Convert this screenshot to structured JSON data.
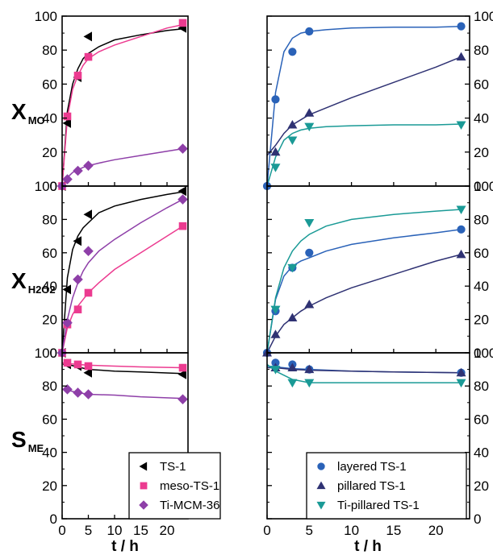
{
  "chart_data": {
    "type": "scatter",
    "x_label": "t / h",
    "x_range": [
      0,
      24
    ],
    "x_ticks": [
      0,
      5,
      10,
      15,
      20
    ],
    "y_range": [
      0,
      100
    ],
    "y_ticks": [
      0,
      20,
      40,
      60,
      80,
      100
    ],
    "rows": [
      {
        "id": "xmo",
        "label_main": "X",
        "label_sub": "MO"
      },
      {
        "id": "xh2o2",
        "label_main": "X",
        "label_sub": "H2O2"
      },
      {
        "id": "sme",
        "label_main": "S",
        "label_sub": "ME"
      }
    ],
    "legend_placement": "bottom-right",
    "series": [
      {
        "name": "TS-1",
        "column": "left",
        "marker": "triangle-left",
        "color": "#000000",
        "data": {
          "xmo": [
            [
              0,
              0
            ],
            [
              1,
              37
            ],
            [
              3,
              64
            ],
            [
              5,
              88
            ],
            [
              23,
              93
            ]
          ],
          "xh2o2": [
            [
              0,
              0
            ],
            [
              1,
              38
            ],
            [
              3,
              67
            ],
            [
              5,
              83
            ],
            [
              23,
              97
            ]
          ],
          "sme": [
            [
              1,
              93
            ],
            [
              3,
              92
            ],
            [
              5,
              88
            ],
            [
              23,
              87
            ]
          ]
        },
        "fit": {
          "xmo": [
            [
              0,
              0
            ],
            [
              1,
              44
            ],
            [
              2,
              60
            ],
            [
              3,
              69
            ],
            [
              4,
              75
            ],
            [
              5,
              78
            ],
            [
              7,
              82
            ],
            [
              10,
              86
            ],
            [
              15,
              89
            ],
            [
              20,
              91.5
            ],
            [
              23,
              92.5
            ]
          ],
          "xh2o2": [
            [
              0,
              0
            ],
            [
              1,
              45
            ],
            [
              2,
              62
            ],
            [
              3,
              70
            ],
            [
              4,
              75
            ],
            [
              5,
              78
            ],
            [
              7,
              84
            ],
            [
              10,
              88
            ],
            [
              15,
              92
            ],
            [
              20,
              95
            ],
            [
              23,
              96.5
            ]
          ],
          "sme": [
            [
              0,
              94
            ],
            [
              1,
              93
            ],
            [
              3,
              91.5
            ],
            [
              5,
              90
            ],
            [
              10,
              89
            ],
            [
              15,
              88.5
            ],
            [
              23,
              87.5
            ]
          ]
        }
      },
      {
        "name": "meso-TS-1",
        "column": "left",
        "marker": "square",
        "color": "#ec3b90",
        "data": {
          "xmo": [
            [
              0,
              0
            ],
            [
              1,
              41
            ],
            [
              3,
              65
            ],
            [
              5,
              76
            ],
            [
              23,
              96
            ]
          ],
          "xh2o2": [
            [
              0,
              0
            ],
            [
              1,
              17
            ],
            [
              3,
              26
            ],
            [
              5,
              36
            ],
            [
              23,
              76
            ]
          ],
          "sme": [
            [
              1,
              94
            ],
            [
              3,
              93
            ],
            [
              5,
              92
            ],
            [
              23,
              91
            ]
          ]
        },
        "fit": {
          "xmo": [
            [
              0,
              0
            ],
            [
              1,
              40
            ],
            [
              2,
              57
            ],
            [
              3,
              65
            ],
            [
              4,
              71
            ],
            [
              5,
              75
            ],
            [
              7,
              79
            ],
            [
              10,
              83
            ],
            [
              15,
              88
            ],
            [
              20,
              93
            ],
            [
              23,
              95
            ]
          ],
          "xh2o2": [
            [
              0,
              0
            ],
            [
              1,
              15
            ],
            [
              2,
              23
            ],
            [
              3,
              28
            ],
            [
              4,
              32
            ],
            [
              5,
              36
            ],
            [
              7,
              42
            ],
            [
              10,
              50
            ],
            [
              15,
              60
            ],
            [
              20,
              70
            ],
            [
              23,
              76
            ]
          ],
          "sme": [
            [
              0,
              94
            ],
            [
              1,
              93.5
            ],
            [
              3,
              93
            ],
            [
              5,
              92.5
            ],
            [
              10,
              92
            ],
            [
              15,
              91.5
            ],
            [
              23,
              91
            ]
          ]
        }
      },
      {
        "name": "Ti-MCM-36",
        "column": "left",
        "marker": "diamond",
        "color": "#8e3fa8",
        "data": {
          "xmo": [
            [
              0,
              0
            ],
            [
              1,
              4
            ],
            [
              3,
              9
            ],
            [
              5,
              12
            ],
            [
              23,
              22
            ]
          ],
          "xh2o2": [
            [
              0,
              0
            ],
            [
              1,
              18
            ],
            [
              3,
              44
            ],
            [
              5,
              61
            ],
            [
              23,
              92
            ]
          ],
          "sme": [
            [
              1,
              78
            ],
            [
              3,
              76
            ],
            [
              5,
              75
            ],
            [
              23,
              72
            ]
          ]
        },
        "fit": {
          "xmo": [
            [
              0,
              0
            ],
            [
              1,
              5
            ],
            [
              2,
              8
            ],
            [
              3,
              9.5
            ],
            [
              4,
              11
            ],
            [
              5,
              12
            ],
            [
              7,
              13.5
            ],
            [
              10,
              15.5
            ],
            [
              15,
              18
            ],
            [
              20,
              20.5
            ],
            [
              23,
              22
            ]
          ],
          "xh2o2": [
            [
              0,
              0
            ],
            [
              1,
              20
            ],
            [
              2,
              33
            ],
            [
              3,
              42
            ],
            [
              4,
              49
            ],
            [
              5,
              54
            ],
            [
              7,
              61
            ],
            [
              10,
              68
            ],
            [
              15,
              78
            ],
            [
              20,
              87
            ],
            [
              23,
              92
            ]
          ],
          "sme": [
            [
              0,
              78
            ],
            [
              1,
              77.5
            ],
            [
              3,
              76
            ],
            [
              5,
              75
            ],
            [
              10,
              74.5
            ],
            [
              15,
              73.5
            ],
            [
              23,
              72.5
            ]
          ]
        }
      },
      {
        "name": "layered TS-1",
        "column": "right",
        "marker": "circle",
        "color": "#2a62b8",
        "data": {
          "xmo": [
            [
              0,
              0
            ],
            [
              1,
              51
            ],
            [
              3,
              79
            ],
            [
              5,
              91
            ],
            [
              23,
              94
            ]
          ],
          "xh2o2": [
            [
              0,
              0
            ],
            [
              1,
              25
            ],
            [
              3,
              51
            ],
            [
              5,
              60
            ],
            [
              23,
              74
            ]
          ],
          "sme": [
            [
              1,
              94
            ],
            [
              3,
              93
            ],
            [
              5,
              90
            ],
            [
              23,
              88
            ]
          ]
        },
        "fit": {
          "xmo": [
            [
              0,
              0
            ],
            [
              1,
              55
            ],
            [
              2,
              79
            ],
            [
              3,
              87
            ],
            [
              4,
              90
            ],
            [
              5,
              91
            ],
            [
              7,
              92
            ],
            [
              10,
              93
            ],
            [
              15,
              93.5
            ],
            [
              20,
              93.5
            ],
            [
              23,
              94
            ]
          ],
          "xh2o2": [
            [
              0,
              0
            ],
            [
              1,
              32
            ],
            [
              2,
              46
            ],
            [
              3,
              52
            ],
            [
              4,
              55
            ],
            [
              5,
              57
            ],
            [
              7,
              61
            ],
            [
              10,
              65
            ],
            [
              15,
              69
            ],
            [
              20,
              72
            ],
            [
              23,
              74
            ]
          ],
          "sme": [
            [
              0,
              92
            ],
            [
              1,
              91.5
            ],
            [
              3,
              90.5
            ],
            [
              5,
              90
            ],
            [
              10,
              89
            ],
            [
              15,
              88.5
            ],
            [
              23,
              88
            ]
          ]
        }
      },
      {
        "name": "pillared TS-1",
        "column": "right",
        "marker": "triangle-up",
        "color": "#2f3273",
        "data": {
          "xmo": [
            [
              1,
              20
            ],
            [
              3,
              36
            ],
            [
              5,
              43
            ],
            [
              23,
              76
            ]
          ],
          "xh2o2": [
            [
              0,
              0
            ],
            [
              1,
              11
            ],
            [
              3,
              21
            ],
            [
              5,
              29
            ],
            [
              23,
              59
            ]
          ],
          "sme": [
            [
              1,
              91
            ],
            [
              3,
              91
            ],
            [
              5,
              90
            ],
            [
              23,
              88
            ]
          ]
        },
        "fit": {
          "xmo": [
            [
              0,
              18
            ],
            [
              1,
              24
            ],
            [
              2,
              31
            ],
            [
              3,
              36
            ],
            [
              4,
              39
            ],
            [
              5,
              42
            ],
            [
              7,
              46
            ],
            [
              10,
              52
            ],
            [
              15,
              61
            ],
            [
              20,
              70
            ],
            [
              23,
              76
            ]
          ],
          "xh2o2": [
            [
              0,
              0
            ],
            [
              1,
              10
            ],
            [
              2,
              17
            ],
            [
              3,
              21
            ],
            [
              4,
              25
            ],
            [
              5,
              28
            ],
            [
              7,
              33
            ],
            [
              10,
              39
            ],
            [
              15,
              47
            ],
            [
              20,
              55
            ],
            [
              23,
              59
            ]
          ],
          "sme": [
            [
              0,
              91
            ],
            [
              1,
              91
            ],
            [
              3,
              90
            ],
            [
              5,
              89.5
            ],
            [
              10,
              89
            ],
            [
              15,
              88.5
            ],
            [
              23,
              88
            ]
          ]
        }
      },
      {
        "name": "Ti-pillared TS-1",
        "column": "right",
        "marker": "triangle-down",
        "color": "#1a9a96",
        "data": {
          "xmo": [
            [
              1,
              11
            ],
            [
              3,
              27
            ],
            [
              5,
              35
            ],
            [
              23,
              36
            ]
          ],
          "xh2o2": [
            [
              1,
              26
            ],
            [
              3,
              51
            ],
            [
              5,
              78
            ],
            [
              23,
              86
            ]
          ],
          "sme": [
            [
              1,
              90
            ],
            [
              3,
              82
            ],
            [
              5,
              82
            ],
            [
              23,
              82
            ]
          ]
        },
        "fit": {
          "xmo": [
            [
              0,
              0
            ],
            [
              1,
              17
            ],
            [
              2,
              27
            ],
            [
              3,
              31
            ],
            [
              4,
              33
            ],
            [
              5,
              34
            ],
            [
              7,
              35
            ],
            [
              10,
              35.5
            ],
            [
              15,
              36
            ],
            [
              20,
              36
            ],
            [
              23,
              36.5
            ]
          ],
          "xh2o2": [
            [
              0,
              0
            ],
            [
              1,
              33
            ],
            [
              2,
              51
            ],
            [
              3,
              61
            ],
            [
              4,
              67
            ],
            [
              5,
              71
            ],
            [
              7,
              76
            ],
            [
              10,
              80
            ],
            [
              15,
              83
            ],
            [
              20,
              85
            ],
            [
              23,
              86
            ]
          ],
          "sme": [
            [
              0,
              93
            ],
            [
              1,
              89
            ],
            [
              3,
              84
            ],
            [
              5,
              82
            ],
            [
              10,
              82
            ],
            [
              15,
              82
            ],
            [
              23,
              82
            ]
          ]
        }
      }
    ]
  }
}
